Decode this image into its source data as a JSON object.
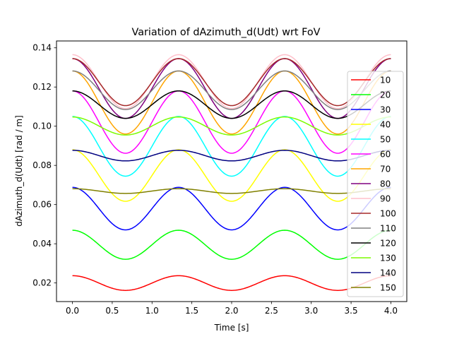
{
  "chart_data": {
    "type": "line",
    "title": "Variation of dAzimuth_d(Udt) wrt FoV",
    "xlabel": "Time [s]",
    "ylabel": "dAzimuth_d(Udt) [rad / m]",
    "xlim": [
      -0.2,
      4.2
    ],
    "ylim": [
      0.0105,
      0.1435
    ],
    "xticks": [
      0.0,
      0.5,
      1.0,
      1.5,
      2.0,
      2.5,
      3.0,
      3.5,
      4.0
    ],
    "xtick_labels": [
      "0.0",
      "0.5",
      "1.0",
      "1.5",
      "2.0",
      "2.5",
      "3.0",
      "3.5",
      "4.0"
    ],
    "yticks": [
      0.02,
      0.04,
      0.06,
      0.08,
      0.1,
      0.12,
      0.14
    ],
    "ytick_labels": [
      "0.02",
      "0.04",
      "0.06",
      "0.08",
      "0.10",
      "0.12",
      "0.14"
    ],
    "grid": false,
    "legend_position": "right",
    "period": 1.333,
    "series": [
      {
        "name": "10",
        "color": "#ff0000",
        "max": 0.0237,
        "min": 0.0162,
        "phase": 0
      },
      {
        "name": "20",
        "color": "#00ff00",
        "max": 0.0469,
        "min": 0.0321,
        "phase": 0
      },
      {
        "name": "30",
        "color": "#0000ff",
        "max": 0.0688,
        "min": 0.0471,
        "phase": 0
      },
      {
        "name": "40",
        "color": "#ffff00",
        "max": 0.088,
        "min": 0.0617,
        "phase": 0
      },
      {
        "name": "50",
        "color": "#00ffff",
        "max": 0.105,
        "min": 0.0745,
        "phase": 0
      },
      {
        "name": "60",
        "color": "#ff00ff",
        "max": 0.118,
        "min": 0.0862,
        "phase": 0
      },
      {
        "name": "70",
        "color": "#ffa500",
        "max": 0.1282,
        "min": 0.096,
        "phase": 0
      },
      {
        "name": "80",
        "color": "#800080",
        "max": 0.1345,
        "min": 0.104,
        "phase": 0
      },
      {
        "name": "90",
        "color": "#ffc0cb",
        "max": 0.1365,
        "min": 0.109,
        "phase": 0
      },
      {
        "name": "100",
        "color": "#a52a2a",
        "max": 0.1345,
        "min": 0.1105,
        "phase": 0
      },
      {
        "name": "110",
        "color": "#808080",
        "max": 0.1282,
        "min": 0.1085,
        "phase": 0
      },
      {
        "name": "120",
        "color": "#000000",
        "max": 0.118,
        "min": 0.104,
        "phase": 0
      },
      {
        "name": "130",
        "color": "#7cfc00",
        "max": 0.1047,
        "min": 0.0955,
        "phase": 0
      },
      {
        "name": "140",
        "color": "#000080",
        "max": 0.0877,
        "min": 0.0823,
        "phase": 0
      },
      {
        "name": "150",
        "color": "#808000",
        "max": 0.0681,
        "min": 0.0657,
        "phase": 0
      }
    ]
  }
}
